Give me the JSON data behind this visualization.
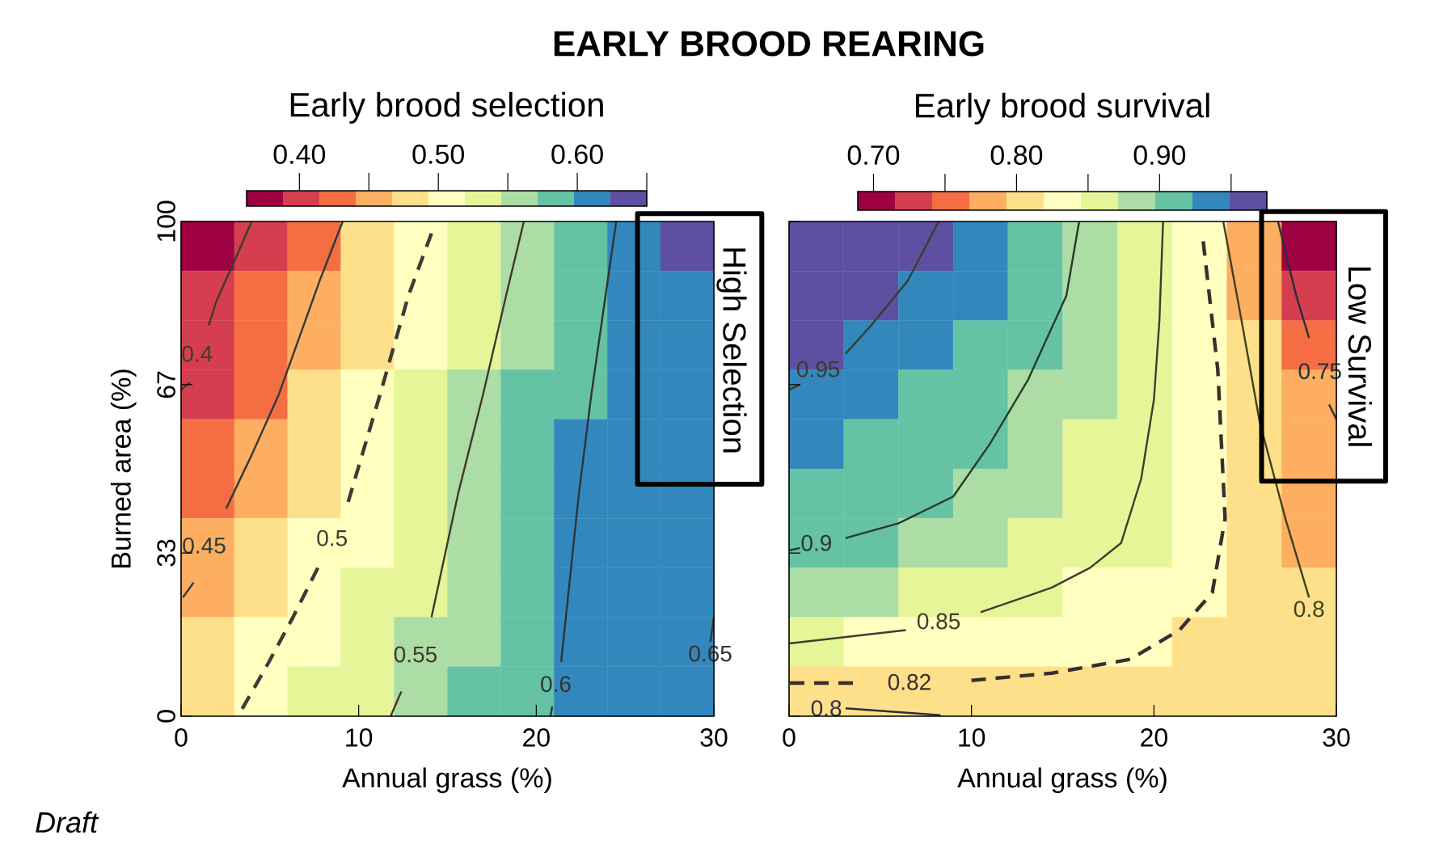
{
  "chart_data": [
    {
      "type": "heatmap",
      "title": "EARLY BROOD REARING",
      "clabel": "Early brood selection",
      "xlabel": "Annual grass (%)",
      "ylabel": "Burned area (%)",
      "x": [
        1.5,
        4.5,
        7.5,
        10.5,
        13.5,
        16.5,
        19.5,
        22.5,
        25.5,
        28.5
      ],
      "y": [
        95,
        85,
        75,
        65,
        55,
        45,
        35,
        25,
        15,
        5
      ],
      "cells": [
        [
          0.38,
          0.41,
          0.44,
          0.47,
          0.5,
          0.525,
          0.555,
          0.58,
          0.605,
          0.63
        ],
        [
          0.392,
          0.42,
          0.45,
          0.478,
          0.507,
          0.535,
          0.56,
          0.588,
          0.61,
          0.615
        ],
        [
          0.403,
          0.43,
          0.46,
          0.486,
          0.513,
          0.54,
          0.567,
          0.59,
          0.61,
          0.615
        ],
        [
          0.41,
          0.44,
          0.47,
          0.494,
          0.52,
          0.547,
          0.572,
          0.595,
          0.61,
          0.615
        ],
        [
          0.425,
          0.45,
          0.475,
          0.5,
          0.525,
          0.552,
          0.575,
          0.598,
          0.61,
          0.615
        ],
        [
          0.44,
          0.46,
          0.485,
          0.507,
          0.532,
          0.556,
          0.578,
          0.6,
          0.61,
          0.615
        ],
        [
          0.45,
          0.47,
          0.495,
          0.516,
          0.537,
          0.561,
          0.58,
          0.602,
          0.61,
          0.615
        ],
        [
          0.465,
          0.485,
          0.505,
          0.525,
          0.545,
          0.563,
          0.585,
          0.603,
          0.612,
          0.615
        ],
        [
          0.475,
          0.495,
          0.513,
          0.532,
          0.55,
          0.57,
          0.588,
          0.605,
          0.612,
          0.615
        ],
        [
          0.485,
          0.503,
          0.52,
          0.538,
          0.555,
          0.573,
          0.59,
          0.605,
          0.612,
          0.615
        ]
      ],
      "clim": [
        0.362,
        0.65
      ],
      "cticks": [
        {
          "value": 0.4,
          "label": "0.40"
        },
        {
          "value": 0.45,
          "label": null
        },
        {
          "value": 0.5,
          "label": "0.50"
        },
        {
          "value": 0.55,
          "label": null
        },
        {
          "value": 0.6,
          "label": "0.60"
        },
        {
          "value": 0.65,
          "label": null
        }
      ],
      "xlim": [
        0,
        30
      ],
      "ylim": [
        0,
        100
      ],
      "xticks": [
        0,
        10,
        20,
        30
      ],
      "yticks": [
        0,
        33,
        67,
        100
      ],
      "series": [
        {
          "type": "line",
          "name": "0.4",
          "color": "#3c3c32",
          "line_style": "solid",
          "x": [
            3.97,
            3.0,
            2.0,
            1.55,
            0.9,
            0.5,
            0
          ],
          "values": [
            100,
            92,
            84,
            79,
            null,
            67.5,
            66
          ]
        },
        {
          "type": "line",
          "name": "0.45",
          "color": "#2f3a3a",
          "line_style": "solid",
          "x": [
            9.1,
            7.8,
            6.6,
            5.5,
            4.0,
            2.54,
            1.3,
            0.7,
            0.1
          ],
          "values": [
            100,
            88,
            76,
            65,
            53,
            42,
            null,
            27,
            24
          ]
        },
        {
          "type": "line",
          "name": "0.5",
          "color": "#3c3c32",
          "line_style": "dashed",
          "x": [
            14.1,
            12.8,
            11.2,
            9.3,
            8.5,
            7.7,
            6.3,
            4.8,
            3.2
          ],
          "values": [
            97.6,
            85,
            65,
            42,
            null,
            30,
            20,
            10,
            0
          ]
        },
        {
          "type": "line",
          "name": "0.55",
          "color": "#44382c",
          "line_style": "solid",
          "x": [
            19.3,
            18.3,
            17.0,
            15.6,
            14.1,
            13.2,
            12.4,
            11.8
          ],
          "values": [
            100,
            85,
            65,
            45,
            20,
            null,
            5,
            0
          ]
        },
        {
          "type": "line",
          "name": "0.6",
          "color": "#333333",
          "line_style": "solid",
          "x": [
            24.5,
            23.9,
            23.1,
            22.4,
            21.4,
            21.1,
            20.9,
            20.8
          ],
          "values": [
            100,
            85,
            65,
            45,
            11,
            null,
            2,
            0
          ]
        },
        {
          "type": "line",
          "name": "0.65",
          "color": "#3a3030",
          "line_style": "solid",
          "x": [
            29.8,
            30
          ],
          "values": [
            15,
            20
          ]
        }
      ],
      "annotations": [
        "High Selection",
        "Draft"
      ]
    },
    {
      "type": "heatmap",
      "clabel": "Early brood survival",
      "xlabel": "Annual grass (%)",
      "tick_labels": "x",
      "x": [
        1.5,
        4.5,
        7.5,
        10.5,
        13.5,
        16.5,
        19.5,
        22.5,
        25.5,
        28.5
      ],
      "y": [
        95,
        85,
        75,
        65,
        55,
        45,
        35,
        25,
        15,
        5
      ],
      "cells": [
        [
          0.97,
          0.96,
          0.95,
          0.93,
          0.915,
          0.89,
          0.86,
          0.822,
          0.77,
          0.71
        ],
        [
          0.96,
          0.952,
          0.94,
          0.925,
          0.905,
          0.885,
          0.855,
          0.825,
          0.78,
          0.73
        ],
        [
          0.955,
          0.945,
          0.932,
          0.917,
          0.9,
          0.88,
          0.855,
          0.828,
          0.795,
          0.75
        ],
        [
          0.94,
          0.93,
          0.92,
          0.907,
          0.895,
          0.875,
          0.853,
          0.83,
          0.8,
          0.77
        ],
        [
          0.93,
          0.92,
          0.91,
          0.9,
          0.89,
          0.87,
          0.852,
          0.83,
          0.805,
          0.78
        ],
        [
          0.92,
          0.912,
          0.904,
          0.896,
          0.885,
          0.868,
          0.85,
          0.83,
          0.81,
          0.785
        ],
        [
          0.902,
          0.897,
          0.885,
          0.873,
          0.862,
          0.856,
          0.845,
          0.827,
          0.81,
          0.79
        ],
        [
          0.88,
          0.873,
          0.865,
          0.858,
          0.852,
          0.843,
          0.833,
          0.823,
          0.812,
          0.798
        ],
        [
          0.848,
          0.842,
          0.838,
          0.834,
          0.83,
          0.826,
          0.821,
          0.816,
          0.81,
          0.802
        ],
        [
          0.8,
          0.805,
          0.81,
          0.812,
          0.814,
          0.815,
          0.815,
          0.814,
          0.812,
          0.81
        ]
      ],
      "clim": [
        0.689,
        0.975
      ],
      "cticks": [
        {
          "value": 0.7,
          "label": "0.70"
        },
        {
          "value": 0.75,
          "label": null
        },
        {
          "value": 0.8,
          "label": "0.80"
        },
        {
          "value": 0.85,
          "label": null
        },
        {
          "value": 0.9,
          "label": "0.90"
        },
        {
          "value": 0.95,
          "label": null
        }
      ],
      "xlim": [
        0,
        30
      ],
      "ylim": [
        0,
        100
      ],
      "xticks": [
        0,
        10,
        20,
        30
      ],
      "yticks": [
        0,
        33,
        67,
        100
      ],
      "series": [
        {
          "type": "line",
          "name": "0.95",
          "color": "#3c3c28",
          "line_style": "solid",
          "x": [
            8.2,
            6.5,
            4.5,
            3.1,
            1.6,
            0.6,
            0
          ],
          "values": [
            100,
            88,
            79,
            73.3,
            null,
            67,
            66
          ]
        },
        {
          "type": "line",
          "name": "0.9",
          "color": "#2a3a2a",
          "line_style": "solid",
          "x": [
            15.9,
            15.2,
            13.1,
            11,
            9.0,
            6,
            3.1,
            1.5,
            0.6,
            0
          ],
          "values": [
            100,
            85,
            68,
            55,
            44.4,
            39,
            36,
            null,
            34,
            33.5
          ]
        },
        {
          "type": "line",
          "name": "0.85",
          "color": "#463a30",
          "line_style": "solid",
          "x": [
            20.5,
            20.3,
            20,
            19.3,
            18.2,
            16.5,
            14.4,
            10.5,
            8.2,
            6.4,
            0
          ],
          "values": [
            100,
            80,
            64,
            48,
            35,
            30,
            26,
            21,
            null,
            17.4,
            14.7
          ]
        },
        {
          "type": "line",
          "name": "0.82",
          "color": "#3a2e2e",
          "line_style": "dashed",
          "x": [
            22.7,
            23.5,
            23.9,
            23.2,
            21.4,
            18.7,
            14.4,
            9.6,
            6.6,
            3.5,
            0
          ],
          "values": [
            96,
            70,
            40,
            25,
            17.4,
            11.5,
            8.7,
            7.1,
            null,
            6.7,
            6.7
          ]
        },
        {
          "type": "line",
          "name": "0.8",
          "color": "#2e2e3e",
          "line_style": "solid",
          "x": [
            3.1,
            8.3
          ],
          "values": [
            1.6,
            0.2
          ]
        },
        {
          "type": "line",
          "name": "0.8",
          "color": "#404020",
          "line_style": "solid",
          "x": [
            28.5,
            27.2,
            25.8,
            24.8,
            23.8
          ],
          "values": [
            24,
            40,
            59.4,
            80,
            100
          ]
        },
        {
          "type": "line",
          "name": "0.75",
          "color": "#24303c",
          "line_style": "solid",
          "x": [
            26.8,
            27.8,
            28.5,
            29.1,
            29.6,
            30
          ],
          "values": [
            100,
            85,
            76.5,
            null,
            63,
            60
          ]
        }
      ],
      "annotations": [
        "Low Survival"
      ]
    }
  ]
}
